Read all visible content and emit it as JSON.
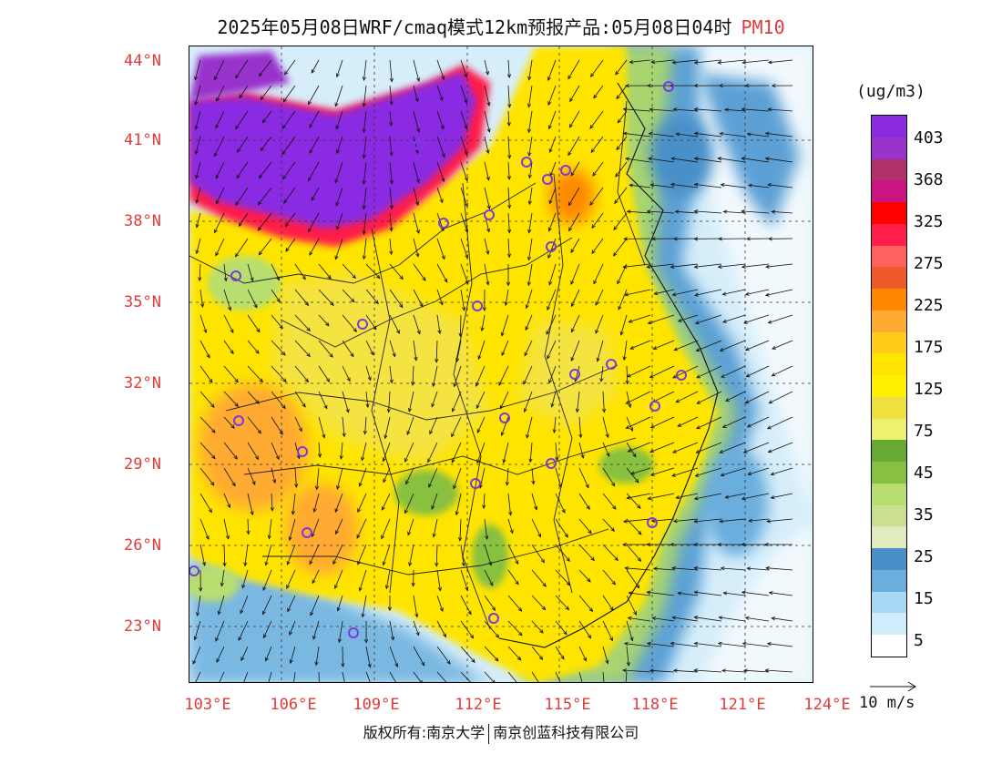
{
  "title": {
    "main": "2025年05月08日WRF/cmaq模式12km预报产品:05月08日04时",
    "variable": "PM10"
  },
  "latitude_labels": [
    "44°N",
    "41°N",
    "38°N",
    "35°N",
    "32°N",
    "29°N",
    "26°N",
    "23°N"
  ],
  "longitude_labels": [
    "103°E",
    "106°E",
    "109°E",
    "112°E",
    "115°E",
    "118°E",
    "121°E",
    "124°E"
  ],
  "legend": {
    "unit": "(ug/m3)",
    "levels": [
      "403",
      "368",
      "325",
      "275",
      "225",
      "175",
      "125",
      "75",
      "45",
      "35",
      "25",
      "15",
      "5"
    ],
    "colors": [
      "#8a2be2",
      "#9933cc",
      "#b0306a",
      "#cc1480",
      "#ff0000",
      "#ff1f4a",
      "#ff6060",
      "#ee5a2a",
      "#ff8800",
      "#ffaa33",
      "#ffcc1a",
      "#ffe400",
      "#fff000",
      "#f0e040",
      "#eef070",
      "#66aa33",
      "#88c040",
      "#b8de70",
      "#c8e090",
      "#e0ecc0",
      "#4a90c8",
      "#6aaede",
      "#a8d8f4",
      "#d0ecfa",
      "#ffffff"
    ]
  },
  "wind_scale": {
    "label": "10 m/s"
  },
  "copyright": {
    "left": "版权所有:南京大学",
    "right": "南京创蓝科技有限公司"
  },
  "colors": {
    "label_red": "#e23b3b"
  }
}
